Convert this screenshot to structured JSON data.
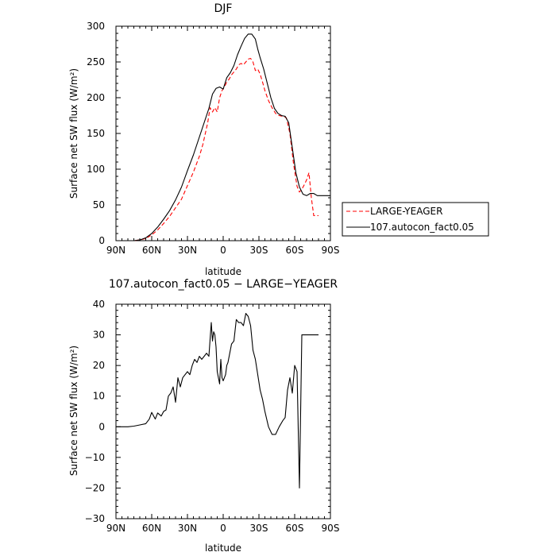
{
  "chart_data": [
    {
      "type": "line",
      "title": "DJF",
      "xlabel": "latitude",
      "ylabel": "Surface net SW flux (W/m²)",
      "xlim": [
        -90,
        90
      ],
      "ylim": [
        0,
        300
      ],
      "xticks": [
        -90,
        -60,
        -30,
        0,
        30,
        60,
        90
      ],
      "xtick_labels": [
        "90N",
        "60N",
        "30N",
        "0",
        "30S",
        "60S",
        "90S"
      ],
      "yticks": [
        0,
        50,
        100,
        150,
        200,
        250,
        300
      ],
      "ytick_labels": [
        "0",
        "50",
        "100",
        "150",
        "200",
        "250",
        "300"
      ],
      "legend_position": "right, outside plot",
      "series": [
        {
          "name": "LARGE-YEAGER",
          "color": "#ff0000",
          "dash": "dashed",
          "x": [
            -90,
            -80,
            -75,
            -70,
            -65,
            -60,
            -55,
            -50,
            -45,
            -40,
            -35,
            -30,
            -25,
            -20,
            -17,
            -15,
            -13,
            -11,
            -9,
            -7,
            -5,
            -3,
            -1,
            1,
            3,
            5,
            7,
            9,
            11,
            13,
            15,
            17,
            19,
            21,
            23,
            25,
            27,
            29,
            31,
            33,
            35,
            38,
            41,
            44,
            47,
            50,
            53,
            56,
            59,
            62,
            64,
            66,
            68,
            70,
            72,
            74,
            76,
            78,
            79,
            80
          ],
          "y": [
            0,
            0,
            0,
            1,
            3,
            8,
            15,
            24,
            34,
            46,
            58,
            77,
            96,
            118,
            135,
            150,
            165,
            186,
            180,
            186,
            180,
            200,
            210,
            215,
            222,
            226,
            232,
            236,
            240,
            246,
            248,
            246,
            250,
            254,
            255,
            250,
            238,
            240,
            233,
            222,
            210,
            196,
            186,
            178,
            175,
            174,
            172,
            150,
            108,
            76,
            68,
            72,
            78,
            85,
            95,
            60,
            35,
            35,
            35,
            35
          ]
        },
        {
          "name": "107.autocon_fact0.05",
          "color": "#000000",
          "dash": "solid",
          "x": [
            -90,
            -80,
            -75,
            -70,
            -65,
            -60,
            -55,
            -50,
            -45,
            -40,
            -35,
            -30,
            -25,
            -20,
            -17,
            -15,
            -12,
            -9,
            -6,
            -3,
            0,
            3,
            6,
            9,
            12,
            15,
            18,
            21,
            24,
            27,
            29,
            31,
            34,
            37,
            40,
            43,
            46,
            49,
            52,
            55,
            58,
            61,
            64,
            67,
            70,
            73,
            76,
            79,
            82,
            85,
            88,
            90
          ],
          "y": [
            0,
            0,
            0,
            1,
            4,
            10,
            19,
            30,
            42,
            57,
            75,
            98,
            120,
            145,
            160,
            170,
            185,
            205,
            213,
            215,
            212,
            228,
            235,
            245,
            260,
            272,
            283,
            289,
            289,
            282,
            268,
            256,
            240,
            220,
            200,
            185,
            178,
            175,
            174,
            165,
            130,
            95,
            75,
            65,
            63,
            66,
            66,
            63,
            63,
            63,
            63,
            63
          ]
        }
      ]
    },
    {
      "type": "line",
      "title": "107.autocon_fact0.05 − LARGE−YEAGER",
      "xlabel": "latitude",
      "ylabel": "Surface net SW flux (W/m²)",
      "xlim": [
        -90,
        90
      ],
      "ylim": [
        -30,
        40
      ],
      "xticks": [
        -90,
        -60,
        -30,
        0,
        30,
        60,
        90
      ],
      "xtick_labels": [
        "90N",
        "60N",
        "30N",
        "0",
        "30S",
        "60S",
        "90S"
      ],
      "yticks": [
        -30,
        -20,
        -10,
        0,
        10,
        20,
        30,
        40
      ],
      "ytick_labels": [
        "−30",
        "−20",
        "−10",
        "0",
        "10",
        "20",
        "30",
        "40"
      ],
      "series": [
        {
          "color": "#000000",
          "dash": "solid",
          "x": [
            -90,
            -80,
            -75,
            -70,
            -65,
            -62,
            -60,
            -57,
            -55,
            -52,
            -50,
            -48,
            -46,
            -44,
            -42,
            -40,
            -38,
            -36,
            -34,
            -32,
            -30,
            -28,
            -26,
            -24,
            -22,
            -20,
            -18,
            -16,
            -14,
            -12,
            -10,
            -9,
            -8,
            -7,
            -6,
            -5,
            -4,
            -3,
            -2,
            -1,
            0,
            1,
            2,
            3,
            4,
            5,
            7,
            9,
            11,
            13,
            15,
            17,
            19,
            21,
            23,
            25,
            27,
            29,
            31,
            33,
            35,
            38,
            41,
            44,
            47,
            50,
            52,
            54,
            56,
            58,
            60,
            62,
            64,
            66,
            68,
            70,
            72,
            74,
            76,
            78,
            80
          ],
          "y": [
            0,
            0,
            0.2,
            0.6,
            1,
            2.5,
            4.7,
            2.5,
            4.5,
            3.5,
            5,
            5.5,
            10,
            11,
            13,
            8,
            16,
            13,
            16,
            17,
            18,
            17,
            20,
            22,
            21,
            23,
            22,
            23,
            24,
            23,
            34,
            28,
            31,
            30,
            26,
            18,
            16,
            14,
            22,
            16,
            15,
            16,
            17,
            20,
            21,
            23,
            27,
            28,
            35,
            34,
            34,
            33,
            37,
            36,
            33,
            25,
            22,
            17,
            12,
            9,
            5,
            0,
            -2.5,
            -2.5,
            0,
            2,
            3,
            12,
            16,
            11,
            20,
            18,
            -20,
            30,
            30,
            30,
            30,
            30,
            30,
            30,
            30
          ]
        }
      ]
    }
  ]
}
